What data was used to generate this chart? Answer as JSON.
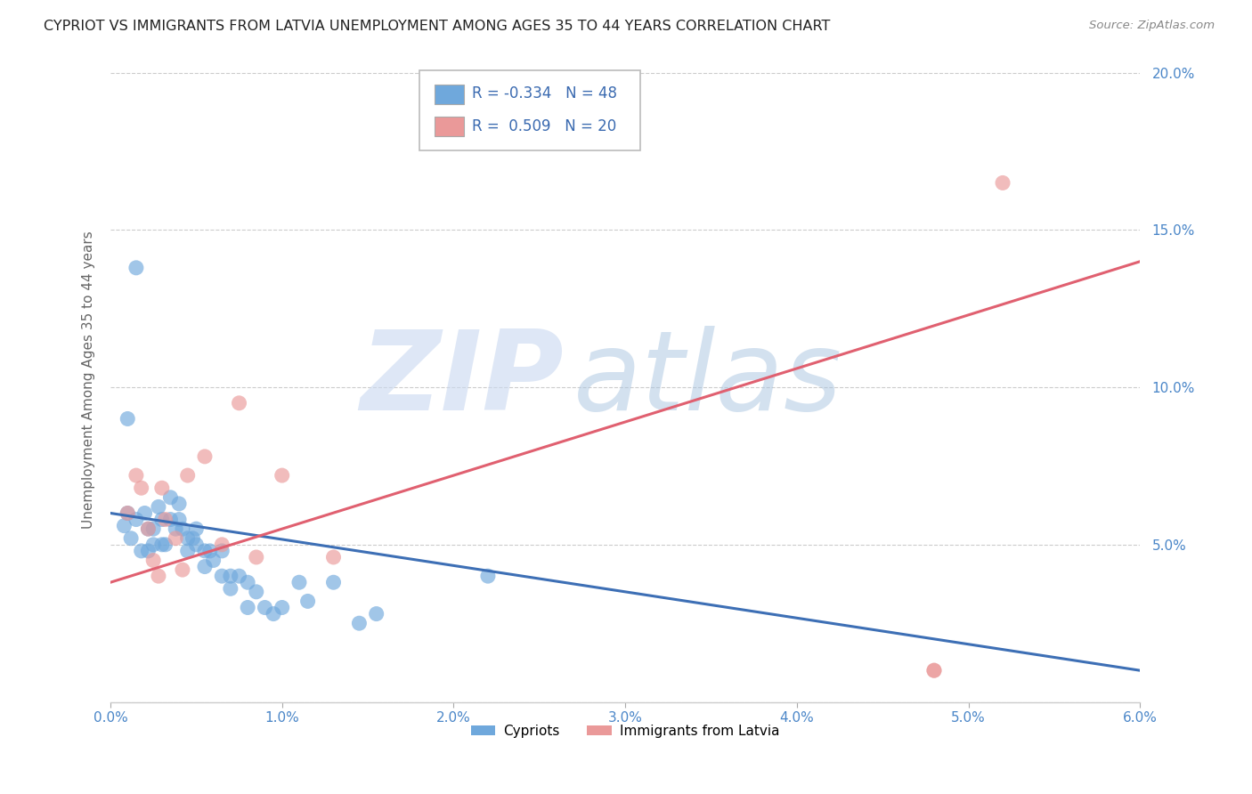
{
  "title": "CYPRIOT VS IMMIGRANTS FROM LATVIA UNEMPLOYMENT AMONG AGES 35 TO 44 YEARS CORRELATION CHART",
  "source": "Source: ZipAtlas.com",
  "ylabel": "Unemployment Among Ages 35 to 44 years",
  "xlim": [
    0.0,
    0.06
  ],
  "ylim": [
    0.0,
    0.205
  ],
  "xticks": [
    0.0,
    0.01,
    0.02,
    0.03,
    0.04,
    0.05,
    0.06
  ],
  "xticklabels": [
    "0.0%",
    "1.0%",
    "2.0%",
    "3.0%",
    "4.0%",
    "5.0%",
    "6.0%"
  ],
  "yticks": [
    0.0,
    0.05,
    0.1,
    0.15,
    0.2
  ],
  "yticklabels": [
    "",
    "5.0%",
    "10.0%",
    "15.0%",
    "20.0%"
  ],
  "cypriot_color": "#6fa8dc",
  "latvia_color": "#ea9999",
  "trend_cypriot_color": "#3d6fb5",
  "trend_latvia_color": "#e06070",
  "legend_R_cypriot": "-0.334",
  "legend_N_cypriot": "48",
  "legend_R_latvia": "0.509",
  "legend_N_latvia": "20",
  "watermark_ZIP": "ZIP",
  "watermark_atlas": "atlas",
  "watermark_color_zip": "#c9d8f0",
  "watermark_color_atlas": "#a8c4e0",
  "cypriot_x": [
    0.0008,
    0.001,
    0.0012,
    0.0015,
    0.0018,
    0.002,
    0.0022,
    0.0022,
    0.0025,
    0.0025,
    0.0028,
    0.003,
    0.003,
    0.0032,
    0.0035,
    0.0035,
    0.0038,
    0.004,
    0.004,
    0.0042,
    0.0045,
    0.0045,
    0.0048,
    0.005,
    0.005,
    0.0055,
    0.0055,
    0.0058,
    0.006,
    0.0065,
    0.0065,
    0.007,
    0.007,
    0.0075,
    0.008,
    0.008,
    0.0085,
    0.009,
    0.0095,
    0.01,
    0.011,
    0.0115,
    0.013,
    0.0145,
    0.0155,
    0.022,
    0.0015,
    0.001
  ],
  "cypriot_y": [
    0.056,
    0.06,
    0.052,
    0.058,
    0.048,
    0.06,
    0.055,
    0.048,
    0.055,
    0.05,
    0.062,
    0.058,
    0.05,
    0.05,
    0.065,
    0.058,
    0.055,
    0.063,
    0.058,
    0.055,
    0.052,
    0.048,
    0.052,
    0.055,
    0.05,
    0.048,
    0.043,
    0.048,
    0.045,
    0.04,
    0.048,
    0.04,
    0.036,
    0.04,
    0.03,
    0.038,
    0.035,
    0.03,
    0.028,
    0.03,
    0.038,
    0.032,
    0.038,
    0.025,
    0.028,
    0.04,
    0.138,
    0.09
  ],
  "latvia_x": [
    0.001,
    0.0015,
    0.0018,
    0.0022,
    0.0025,
    0.0028,
    0.003,
    0.0032,
    0.0038,
    0.0042,
    0.0045,
    0.0055,
    0.0065,
    0.0075,
    0.0085,
    0.01,
    0.013,
    0.048,
    0.048,
    0.052
  ],
  "latvia_y": [
    0.06,
    0.072,
    0.068,
    0.055,
    0.045,
    0.04,
    0.068,
    0.058,
    0.052,
    0.042,
    0.072,
    0.078,
    0.05,
    0.095,
    0.046,
    0.072,
    0.046,
    0.01,
    0.01,
    0.165
  ],
  "cypriot_trend_x": [
    0.0,
    0.06
  ],
  "cypriot_trend_y": [
    0.06,
    0.01
  ],
  "latvia_trend_x": [
    0.0,
    0.06
  ],
  "latvia_trend_y": [
    0.038,
    0.14
  ]
}
